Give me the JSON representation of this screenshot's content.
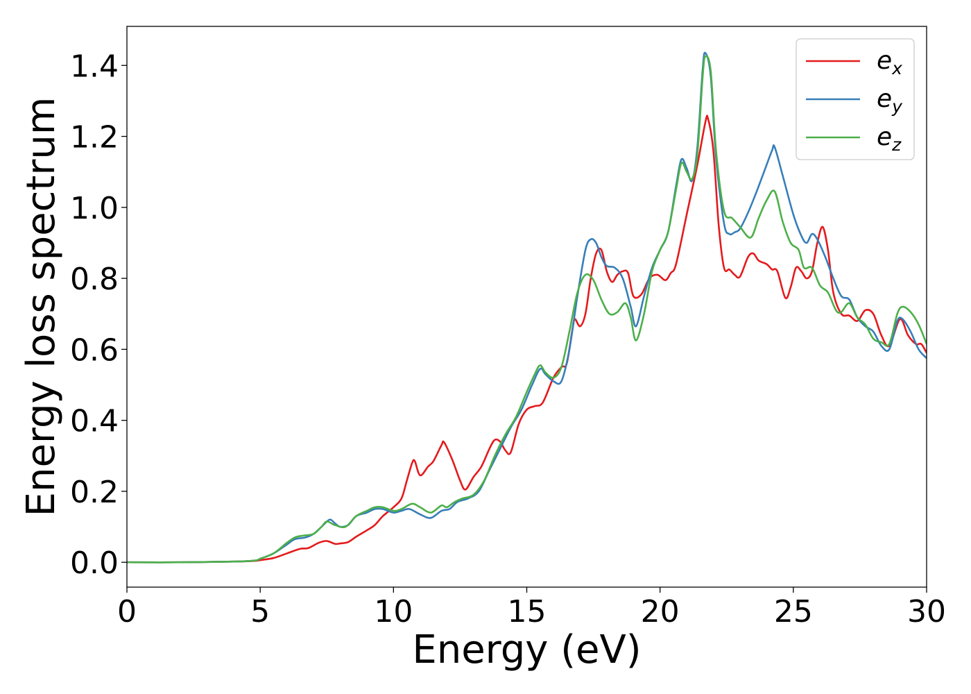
{
  "chart_data": {
    "type": "line",
    "title": "",
    "xlabel": "Energy (eV)",
    "ylabel": "Energy loss spectrum",
    "xlim": [
      0,
      30
    ],
    "ylim": [
      -0.07,
      1.51
    ],
    "xticks": [
      0,
      5,
      10,
      15,
      20,
      25,
      30
    ],
    "xtick_labels": [
      "0",
      "5",
      "10",
      "15",
      "20",
      "25",
      "30"
    ],
    "yticks": [
      0.0,
      0.2,
      0.4,
      0.6,
      0.8,
      1.0,
      1.2,
      1.4
    ],
    "ytick_labels": [
      "0.0",
      "0.2",
      "0.4",
      "0.6",
      "0.8",
      "1.0",
      "1.2",
      "1.4"
    ],
    "grid": false,
    "legend": {
      "placement": "top-right"
    },
    "series": [
      {
        "name": "e",
        "subscript": "x",
        "color": "#e41a1c",
        "points": [
          [
            0,
            0
          ],
          [
            2,
            0
          ],
          [
            4,
            0.002
          ],
          [
            4.8,
            0.004
          ],
          [
            5,
            0.006
          ],
          [
            5.5,
            0.012
          ],
          [
            6,
            0.025
          ],
          [
            6.5,
            0.038
          ],
          [
            6.8,
            0.04
          ],
          [
            7.2,
            0.055
          ],
          [
            7.5,
            0.06
          ],
          [
            7.8,
            0.052
          ],
          [
            8,
            0.053
          ],
          [
            8.3,
            0.057
          ],
          [
            8.6,
            0.072
          ],
          [
            9,
            0.09
          ],
          [
            9.3,
            0.105
          ],
          [
            9.6,
            0.13
          ],
          [
            10,
            0.155
          ],
          [
            10.3,
            0.18
          ],
          [
            10.5,
            0.23
          ],
          [
            10.7,
            0.28
          ],
          [
            10.8,
            0.285
          ],
          [
            11,
            0.245
          ],
          [
            11.3,
            0.27
          ],
          [
            11.5,
            0.285
          ],
          [
            11.8,
            0.33
          ],
          [
            11.9,
            0.338
          ],
          [
            12.2,
            0.29
          ],
          [
            12.5,
            0.23
          ],
          [
            12.7,
            0.205
          ],
          [
            13,
            0.24
          ],
          [
            13.3,
            0.27
          ],
          [
            13.6,
            0.32
          ],
          [
            13.8,
            0.345
          ],
          [
            14,
            0.34
          ],
          [
            14.2,
            0.315
          ],
          [
            14.4,
            0.31
          ],
          [
            14.7,
            0.39
          ],
          [
            15,
            0.43
          ],
          [
            15.3,
            0.44
          ],
          [
            15.6,
            0.45
          ],
          [
            16,
            0.52
          ],
          [
            16.3,
            0.55
          ],
          [
            16.5,
            0.56
          ],
          [
            16.7,
            0.65
          ],
          [
            16.8,
            0.685
          ],
          [
            17,
            0.665
          ],
          [
            17.2,
            0.7
          ],
          [
            17.4,
            0.8
          ],
          [
            17.6,
            0.87
          ],
          [
            17.8,
            0.88
          ],
          [
            18,
            0.82
          ],
          [
            18.2,
            0.79
          ],
          [
            18.4,
            0.81
          ],
          [
            18.6,
            0.82
          ],
          [
            18.8,
            0.815
          ],
          [
            19,
            0.75
          ],
          [
            19.3,
            0.755
          ],
          [
            19.6,
            0.8
          ],
          [
            19.9,
            0.81
          ],
          [
            20.2,
            0.795
          ],
          [
            20.4,
            0.815
          ],
          [
            20.6,
            0.84
          ],
          [
            21,
            0.98
          ],
          [
            21.4,
            1.12
          ],
          [
            21.7,
            1.24
          ],
          [
            21.8,
            1.25
          ],
          [
            22,
            1.16
          ],
          [
            22.2,
            0.95
          ],
          [
            22.4,
            0.83
          ],
          [
            22.6,
            0.825
          ],
          [
            22.8,
            0.81
          ],
          [
            23,
            0.805
          ],
          [
            23.3,
            0.86
          ],
          [
            23.5,
            0.87
          ],
          [
            23.7,
            0.85
          ],
          [
            24,
            0.84
          ],
          [
            24.2,
            0.825
          ],
          [
            24.4,
            0.82
          ],
          [
            24.7,
            0.745
          ],
          [
            24.9,
            0.775
          ],
          [
            25.1,
            0.83
          ],
          [
            25.3,
            0.82
          ],
          [
            25.5,
            0.8
          ],
          [
            25.7,
            0.82
          ],
          [
            25.9,
            0.9
          ],
          [
            26.1,
            0.945
          ],
          [
            26.3,
            0.88
          ],
          [
            26.5,
            0.76
          ],
          [
            26.8,
            0.7
          ],
          [
            27.1,
            0.695
          ],
          [
            27.4,
            0.68
          ],
          [
            27.7,
            0.71
          ],
          [
            28,
            0.7
          ],
          [
            28.3,
            0.64
          ],
          [
            28.6,
            0.61
          ],
          [
            29,
            0.685
          ],
          [
            29.3,
            0.64
          ],
          [
            29.6,
            0.615
          ],
          [
            29.8,
            0.615
          ],
          [
            30,
            0.59
          ]
        ]
      },
      {
        "name": "e",
        "subscript": "y",
        "color": "#377eb8",
        "points": [
          [
            0,
            0
          ],
          [
            2,
            0
          ],
          [
            4,
            0.002
          ],
          [
            4.8,
            0.005
          ],
          [
            5,
            0.01
          ],
          [
            5.5,
            0.025
          ],
          [
            6,
            0.05
          ],
          [
            6.3,
            0.065
          ],
          [
            6.7,
            0.07
          ],
          [
            7,
            0.08
          ],
          [
            7.3,
            0.1
          ],
          [
            7.6,
            0.12
          ],
          [
            7.8,
            0.11
          ],
          [
            8,
            0.1
          ],
          [
            8.3,
            0.105
          ],
          [
            8.6,
            0.13
          ],
          [
            9,
            0.14
          ],
          [
            9.3,
            0.15
          ],
          [
            9.6,
            0.15
          ],
          [
            10,
            0.14
          ],
          [
            10.3,
            0.145
          ],
          [
            10.6,
            0.15
          ],
          [
            11,
            0.135
          ],
          [
            11.4,
            0.125
          ],
          [
            11.8,
            0.145
          ],
          [
            12.1,
            0.15
          ],
          [
            12.4,
            0.17
          ],
          [
            12.8,
            0.18
          ],
          [
            13.2,
            0.2
          ],
          [
            13.6,
            0.26
          ],
          [
            14,
            0.32
          ],
          [
            14.4,
            0.38
          ],
          [
            14.8,
            0.43
          ],
          [
            15.2,
            0.5
          ],
          [
            15.5,
            0.545
          ],
          [
            15.7,
            0.53
          ],
          [
            16,
            0.51
          ],
          [
            16.3,
            0.51
          ],
          [
            16.6,
            0.6
          ],
          [
            16.9,
            0.75
          ],
          [
            17.2,
            0.88
          ],
          [
            17.4,
            0.91
          ],
          [
            17.6,
            0.9
          ],
          [
            17.8,
            0.86
          ],
          [
            18,
            0.835
          ],
          [
            18.3,
            0.83
          ],
          [
            18.6,
            0.8
          ],
          [
            18.9,
            0.72
          ],
          [
            19.1,
            0.665
          ],
          [
            19.4,
            0.75
          ],
          [
            19.7,
            0.83
          ],
          [
            20,
            0.88
          ],
          [
            20.3,
            0.93
          ],
          [
            20.6,
            1.06
          ],
          [
            20.8,
            1.135
          ],
          [
            21,
            1.11
          ],
          [
            21.2,
            1.075
          ],
          [
            21.4,
            1.17
          ],
          [
            21.6,
            1.39
          ],
          [
            21.7,
            1.435
          ],
          [
            21.9,
            1.37
          ],
          [
            22.1,
            1.14
          ],
          [
            22.4,
            0.955
          ],
          [
            22.6,
            0.925
          ],
          [
            22.8,
            0.93
          ],
          [
            23,
            0.94
          ],
          [
            23.3,
            0.985
          ],
          [
            23.6,
            1.04
          ],
          [
            23.9,
            1.1
          ],
          [
            24.2,
            1.16
          ],
          [
            24.3,
            1.17
          ],
          [
            24.6,
            1.09
          ],
          [
            25,
            0.98
          ],
          [
            25.3,
            0.92
          ],
          [
            25.5,
            0.9
          ],
          [
            25.7,
            0.925
          ],
          [
            25.9,
            0.91
          ],
          [
            26.2,
            0.86
          ],
          [
            26.5,
            0.8
          ],
          [
            26.8,
            0.75
          ],
          [
            27.1,
            0.74
          ],
          [
            27.4,
            0.69
          ],
          [
            27.7,
            0.665
          ],
          [
            28,
            0.65
          ],
          [
            28.3,
            0.61
          ],
          [
            28.6,
            0.6
          ],
          [
            28.9,
            0.68
          ],
          [
            29.1,
            0.685
          ],
          [
            29.4,
            0.65
          ],
          [
            29.7,
            0.6
          ],
          [
            30,
            0.575
          ]
        ]
      },
      {
        "name": "e",
        "subscript": "z",
        "color": "#4daf4a",
        "points": [
          [
            0,
            0
          ],
          [
            2,
            0
          ],
          [
            4,
            0.002
          ],
          [
            4.8,
            0.005
          ],
          [
            5,
            0.01
          ],
          [
            5.5,
            0.025
          ],
          [
            6,
            0.055
          ],
          [
            6.3,
            0.07
          ],
          [
            6.6,
            0.075
          ],
          [
            7,
            0.08
          ],
          [
            7.3,
            0.1
          ],
          [
            7.5,
            0.115
          ],
          [
            7.8,
            0.105
          ],
          [
            8.2,
            0.1
          ],
          [
            8.6,
            0.13
          ],
          [
            9,
            0.145
          ],
          [
            9.3,
            0.155
          ],
          [
            9.6,
            0.155
          ],
          [
            10,
            0.145
          ],
          [
            10.3,
            0.15
          ],
          [
            10.7,
            0.165
          ],
          [
            11,
            0.155
          ],
          [
            11.4,
            0.14
          ],
          [
            11.8,
            0.16
          ],
          [
            12,
            0.155
          ],
          [
            12.3,
            0.17
          ],
          [
            12.6,
            0.18
          ],
          [
            13,
            0.19
          ],
          [
            13.4,
            0.23
          ],
          [
            13.8,
            0.3
          ],
          [
            14.2,
            0.36
          ],
          [
            14.6,
            0.41
          ],
          [
            15,
            0.48
          ],
          [
            15.3,
            0.53
          ],
          [
            15.5,
            0.555
          ],
          [
            15.7,
            0.535
          ],
          [
            16,
            0.52
          ],
          [
            16.3,
            0.55
          ],
          [
            16.6,
            0.65
          ],
          [
            16.9,
            0.76
          ],
          [
            17.2,
            0.81
          ],
          [
            17.5,
            0.795
          ],
          [
            17.8,
            0.74
          ],
          [
            18.1,
            0.7
          ],
          [
            18.4,
            0.705
          ],
          [
            18.7,
            0.73
          ],
          [
            18.9,
            0.69
          ],
          [
            19.1,
            0.625
          ],
          [
            19.4,
            0.7
          ],
          [
            19.7,
            0.82
          ],
          [
            20,
            0.88
          ],
          [
            20.3,
            0.93
          ],
          [
            20.6,
            1.05
          ],
          [
            20.8,
            1.125
          ],
          [
            21,
            1.1
          ],
          [
            21.2,
            1.08
          ],
          [
            21.4,
            1.15
          ],
          [
            21.6,
            1.37
          ],
          [
            21.7,
            1.425
          ],
          [
            21.9,
            1.385
          ],
          [
            22.1,
            1.16
          ],
          [
            22.4,
            0.99
          ],
          [
            22.7,
            0.97
          ],
          [
            23,
            0.945
          ],
          [
            23.4,
            0.915
          ],
          [
            23.7,
            0.97
          ],
          [
            24,
            1.02
          ],
          [
            24.3,
            1.045
          ],
          [
            24.6,
            0.96
          ],
          [
            24.9,
            0.9
          ],
          [
            25.2,
            0.88
          ],
          [
            25.4,
            0.83
          ],
          [
            25.7,
            0.83
          ],
          [
            26,
            0.78
          ],
          [
            26.3,
            0.76
          ],
          [
            26.6,
            0.71
          ],
          [
            26.8,
            0.705
          ],
          [
            27.1,
            0.73
          ],
          [
            27.4,
            0.69
          ],
          [
            27.7,
            0.67
          ],
          [
            28,
            0.63
          ],
          [
            28.3,
            0.62
          ],
          [
            28.6,
            0.615
          ],
          [
            28.9,
            0.7
          ],
          [
            29.1,
            0.72
          ],
          [
            29.4,
            0.705
          ],
          [
            29.7,
            0.67
          ],
          [
            30,
            0.615
          ]
        ]
      }
    ]
  }
}
